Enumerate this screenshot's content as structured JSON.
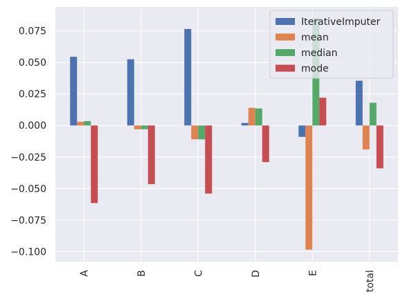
{
  "chart_data": {
    "type": "bar",
    "title": "",
    "xlabel": "",
    "ylabel": "",
    "categories": [
      "A",
      "B",
      "C",
      "D",
      "E",
      "total"
    ],
    "series": [
      {
        "name": "IterativeImputer",
        "color": "#4c72b0",
        "values": [
          0.0545,
          0.0525,
          0.0765,
          0.002,
          -0.009,
          0.0355
        ]
      },
      {
        "name": "mean",
        "color": "#dd8452",
        "values": [
          0.003,
          -0.003,
          -0.011,
          0.014,
          -0.0985,
          -0.019
        ]
      },
      {
        "name": "median",
        "color": "#55a868",
        "values": [
          0.0035,
          -0.003,
          -0.011,
          0.0135,
          0.085,
          0.018
        ]
      },
      {
        "name": "mode",
        "color": "#c44e52",
        "values": [
          -0.0615,
          -0.0465,
          -0.054,
          -0.029,
          0.022,
          -0.034
        ]
      }
    ],
    "ylim": [
      -0.108,
      0.094
    ],
    "yticks": [
      "−0.100",
      "−0.075",
      "−0.050",
      "−0.025",
      "0.000",
      "0.025",
      "0.050",
      "0.075"
    ],
    "ytick_values": [
      -0.1,
      -0.075,
      -0.05,
      -0.025,
      0.0,
      0.025,
      0.05,
      0.075
    ],
    "grid": true,
    "legend_position": "top-right",
    "background": "#eaeaf2"
  }
}
